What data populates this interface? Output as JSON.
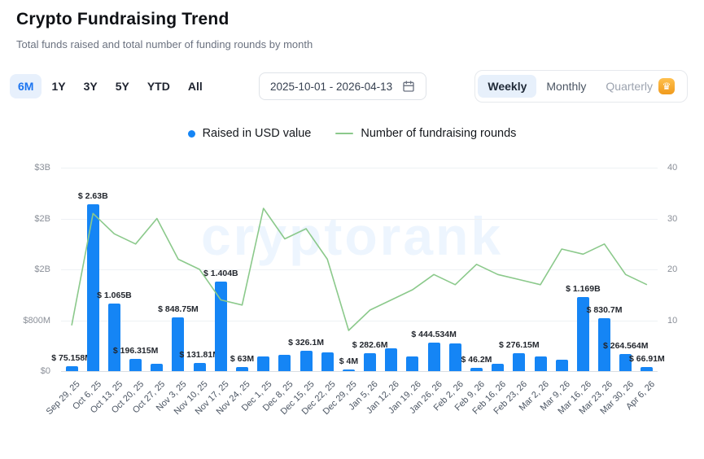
{
  "header": {
    "title": "Crypto Fundraising Trend",
    "subtitle": "Total funds raised and total number of funding rounds by month"
  },
  "controls": {
    "ranges": [
      {
        "label": "6M",
        "active": true
      },
      {
        "label": "1Y",
        "active": false
      },
      {
        "label": "3Y",
        "active": false
      },
      {
        "label": "5Y",
        "active": false
      },
      {
        "label": "YTD",
        "active": false
      },
      {
        "label": "All",
        "active": false
      }
    ],
    "date_range": "2025-10-01 - 2026-04-13",
    "granularity": [
      {
        "label": "Weekly",
        "active": true,
        "locked": false
      },
      {
        "label": "Monthly",
        "active": false,
        "locked": false
      },
      {
        "label": "Quarterly",
        "active": false,
        "locked": true
      }
    ]
  },
  "legend": [
    {
      "label": "Raised in USD value",
      "color": "#1585f5",
      "swatch": "dot"
    },
    {
      "label": "Number of fundraising rounds",
      "color": "#8bc98b",
      "swatch": "line"
    }
  ],
  "watermark": "cryptorank",
  "chart_data": {
    "type": "bar",
    "title": "Crypto Fundraising Trend",
    "categories": [
      "Sep 29, 25",
      "Oct 6, 25",
      "Oct 13, 25",
      "Oct 20, 25",
      "Oct 27, 25",
      "Nov 3, 25",
      "Nov 10, 25",
      "Nov 17, 25",
      "Nov 24, 25",
      "Dec 1, 25",
      "Dec 8, 25",
      "Dec 15, 25",
      "Dec 22, 25",
      "Dec 29, 25",
      "Jan 5, 26",
      "Jan 12, 26",
      "Jan 19, 26",
      "Jan 26, 26",
      "Feb 2, 26",
      "Feb 9, 26",
      "Feb 16, 26",
      "Feb 23, 26",
      "Mar 2, 26",
      "Mar 9, 26",
      "Mar 16, 26",
      "Mar 23, 26",
      "Mar 30, 26",
      "Apr 6, 26"
    ],
    "series": [
      {
        "name": "Raised in USD value",
        "type": "bar",
        "unit": "USD millions",
        "color": "#1585f5",
        "values": [
          75.158,
          2630,
          1065,
          196.315,
          120,
          848.75,
          131.81,
          1404,
          63,
          230,
          260,
          326.1,
          300,
          4,
          282.6,
          360,
          230,
          444.534,
          430,
          46.2,
          120,
          276.15,
          230,
          180,
          1169,
          830.7,
          264.564,
          66.91
        ],
        "labels": [
          "$ 75.158M",
          "$ 2.63B",
          "$ 1.065B",
          "$ 196.315M",
          "",
          "$ 848.75M",
          "$ 131.81M",
          "$ 1.404B",
          "$ 63M",
          "",
          "",
          "$ 326.1M",
          "",
          "$ 4M",
          "$ 282.6M",
          "",
          "",
          "$ 444.534M",
          "",
          "$ 46.2M",
          "",
          "$ 276.15M",
          "",
          "",
          "$ 1.169B",
          "$ 830.7M",
          "$ 264.564M",
          "$ 66.91M"
        ]
      },
      {
        "name": "Number of fundraising rounds",
        "type": "line",
        "unit": "rounds",
        "color": "#8bc98b",
        "values": [
          9,
          31,
          27,
          25,
          30,
          22,
          20,
          14,
          13,
          32,
          26,
          28,
          22,
          8,
          12,
          14,
          16,
          19,
          17,
          21,
          19,
          18,
          17,
          24,
          23,
          25,
          19,
          17
        ]
      }
    ],
    "left_axis": {
      "ticks_bottom_to_top": [
        "$0",
        "$800M",
        "$2B",
        "$2B",
        "$3B"
      ],
      "max_musd": 3200
    },
    "right_axis": {
      "ticks_bottom_to_top": [
        "10",
        "20",
        "30",
        "40"
      ],
      "max": 40
    },
    "grid": true,
    "legend_position": "top-center"
  }
}
